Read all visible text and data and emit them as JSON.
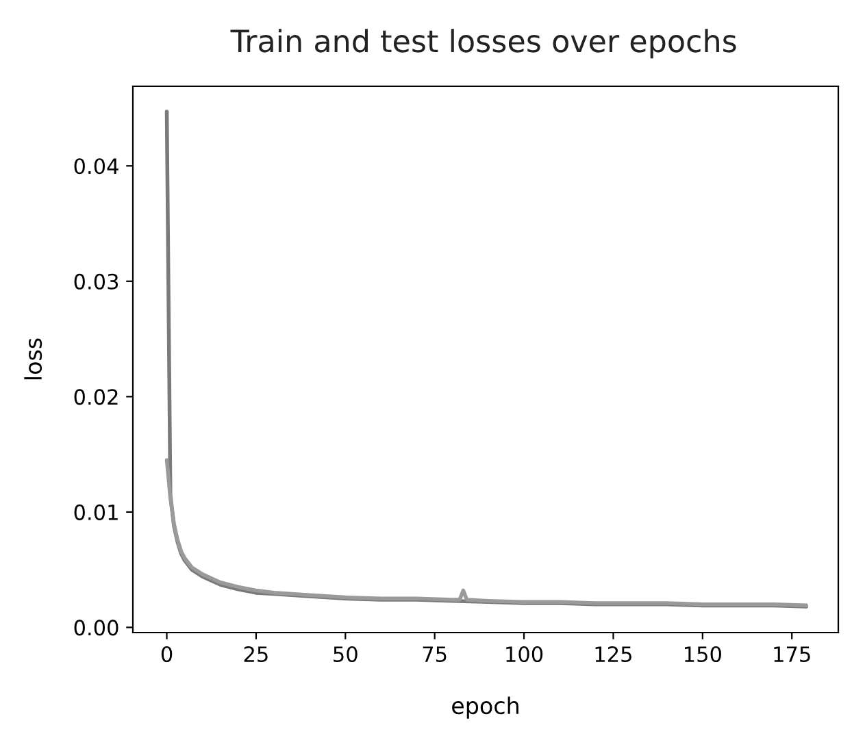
{
  "chart_data": {
    "type": "line",
    "title": "Train and test losses over epochs",
    "xlabel": "epoch",
    "ylabel": "loss",
    "xlim": [
      -9.5,
      188
    ],
    "ylim": [
      -0.00045,
      0.0469
    ],
    "xticks": [
      0,
      25,
      50,
      75,
      100,
      125,
      150,
      175
    ],
    "yticks": [
      {
        "value": 0,
        "label": "0.00"
      },
      0.01,
      0.02,
      0.03,
      0.04
    ],
    "grid": false,
    "legend": false,
    "series": [
      {
        "color": "#7a7a7a",
        "x": [
          0,
          1,
          2,
          3,
          4,
          5,
          7,
          10,
          15,
          20,
          25,
          30,
          35,
          40,
          50,
          60,
          70,
          80,
          90,
          100,
          110,
          120,
          130,
          140,
          150,
          160,
          170,
          179
        ],
        "values": [
          0.0447,
          0.0115,
          0.0088,
          0.0074,
          0.0064,
          0.0058,
          0.005,
          0.0044,
          0.0037,
          0.0033,
          0.003,
          0.0029,
          0.0028,
          0.0027,
          0.0025,
          0.0024,
          0.0024,
          0.0023,
          0.0022,
          0.0021,
          0.0021,
          0.002,
          0.002,
          0.002,
          0.0019,
          0.0019,
          0.0019,
          0.0018
        ]
      },
      {
        "color": "#9a9a9a",
        "x": [
          0,
          1,
          2,
          3,
          4,
          5,
          7,
          10,
          15,
          20,
          25,
          30,
          35,
          40,
          50,
          60,
          70,
          80,
          82,
          83,
          84,
          90,
          100,
          110,
          120,
          130,
          140,
          150,
          160,
          170,
          179
        ],
        "values": [
          0.0145,
          0.0112,
          0.009,
          0.0076,
          0.0066,
          0.006,
          0.0052,
          0.0046,
          0.0039,
          0.0035,
          0.0032,
          0.003,
          0.0029,
          0.0028,
          0.0026,
          0.0025,
          0.0025,
          0.0024,
          0.0024,
          0.0032,
          0.0024,
          0.0023,
          0.0022,
          0.0022,
          0.0021,
          0.0021,
          0.0021,
          0.002,
          0.002,
          0.002,
          0.0019
        ]
      }
    ]
  }
}
